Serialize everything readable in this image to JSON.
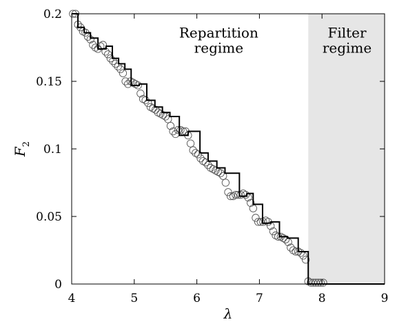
{
  "chart_data": {
    "type": "line",
    "xlabel": "λ",
    "ylabel": {
      "base": "F",
      "sub": "2"
    },
    "xlim": [
      4,
      9
    ],
    "ylim": [
      0,
      0.2
    ],
    "xticks": [
      4,
      5,
      6,
      7,
      8,
      9
    ],
    "yticks": [
      0,
      0.05,
      0.1,
      0.15,
      0.2
    ],
    "ytick_labels": [
      "0",
      "0.05",
      "0.1",
      "0.15",
      "0.2"
    ],
    "grid": false,
    "shaded_region": {
      "x_start": 7.78,
      "x_end": 9,
      "color": "#e6e6e6"
    },
    "annotations": [
      {
        "id": "repartition",
        "lines": [
          "Repartition",
          "regime"
        ],
        "x": 6.35,
        "y": 0.186
      },
      {
        "id": "filter",
        "lines": [
          "Filter",
          "regime"
        ],
        "x": 8.4,
        "y": 0.186
      }
    ],
    "series": [
      {
        "style": "step",
        "color": "#000000",
        "x": [
          4.0,
          4.1,
          4.2,
          4.3,
          4.42,
          4.55,
          4.65,
          4.75,
          4.85,
          4.95,
          5.08,
          5.2,
          5.33,
          5.45,
          5.57,
          5.72,
          5.86,
          5.95,
          6.05,
          6.18,
          6.32,
          6.45,
          6.68,
          6.8,
          6.9,
          7.05,
          7.18,
          7.32,
          7.45,
          7.62,
          7.78,
          9.0
        ],
        "y": [
          0.2,
          0.19,
          0.186,
          0.182,
          0.174,
          0.176,
          0.167,
          0.163,
          0.159,
          0.147,
          0.148,
          0.136,
          0.131,
          0.127,
          0.124,
          0.11,
          0.113,
          0.113,
          0.097,
          0.091,
          0.086,
          0.082,
          0.065,
          0.067,
          0.059,
          0.045,
          0.046,
          0.035,
          0.034,
          0.024,
          0.0,
          0.0
        ]
      },
      {
        "style": "markers",
        "marker": "open-circle",
        "color": "#555555",
        "x": [
          4.02,
          4.06,
          4.1,
          4.14,
          4.18,
          4.22,
          4.26,
          4.3,
          4.34,
          4.38,
          4.42,
          4.46,
          4.5,
          4.54,
          4.58,
          4.62,
          4.66,
          4.7,
          4.74,
          4.78,
          4.82,
          4.86,
          4.9,
          4.94,
          4.98,
          5.02,
          5.06,
          5.1,
          5.14,
          5.18,
          5.22,
          5.26,
          5.3,
          5.34,
          5.38,
          5.42,
          5.46,
          5.5,
          5.54,
          5.58,
          5.62,
          5.66,
          5.7,
          5.74,
          5.78,
          5.82,
          5.86,
          5.9,
          5.94,
          5.98,
          6.02,
          6.06,
          6.1,
          6.14,
          6.18,
          6.22,
          6.26,
          6.3,
          6.34,
          6.38,
          6.42,
          6.46,
          6.5,
          6.54,
          6.58,
          6.62,
          6.66,
          6.7,
          6.74,
          6.78,
          6.82,
          6.86,
          6.9,
          6.94,
          6.98,
          7.02,
          7.06,
          7.1,
          7.14,
          7.18,
          7.22,
          7.26,
          7.3,
          7.34,
          7.38,
          7.42,
          7.46,
          7.5,
          7.54,
          7.58,
          7.62,
          7.66,
          7.7,
          7.74,
          7.78,
          7.82,
          7.86,
          7.9,
          7.94,
          7.98,
          8.02
        ],
        "y": [
          0.2,
          0.2,
          0.192,
          0.19,
          0.187,
          0.186,
          0.183,
          0.181,
          0.177,
          0.175,
          0.174,
          0.176,
          0.177,
          0.172,
          0.17,
          0.167,
          0.165,
          0.163,
          0.161,
          0.159,
          0.156,
          0.15,
          0.148,
          0.15,
          0.149,
          0.148,
          0.147,
          0.141,
          0.137,
          0.136,
          0.134,
          0.131,
          0.13,
          0.129,
          0.127,
          0.126,
          0.125,
          0.124,
          0.122,
          0.117,
          0.113,
          0.111,
          0.114,
          0.114,
          0.113,
          0.113,
          0.11,
          0.104,
          0.099,
          0.097,
          0.096,
          0.093,
          0.091,
          0.09,
          0.088,
          0.086,
          0.085,
          0.084,
          0.083,
          0.082,
          0.08,
          0.075,
          0.068,
          0.065,
          0.065,
          0.066,
          0.066,
          0.066,
          0.067,
          0.066,
          0.064,
          0.06,
          0.056,
          0.049,
          0.046,
          0.046,
          0.046,
          0.047,
          0.046,
          0.043,
          0.039,
          0.036,
          0.035,
          0.035,
          0.034,
          0.033,
          0.031,
          0.027,
          0.025,
          0.024,
          0.024,
          0.023,
          0.021,
          0.018,
          0.002,
          0.001,
          0.001,
          0.001,
          0.001,
          0.001,
          0.001
        ]
      }
    ]
  }
}
